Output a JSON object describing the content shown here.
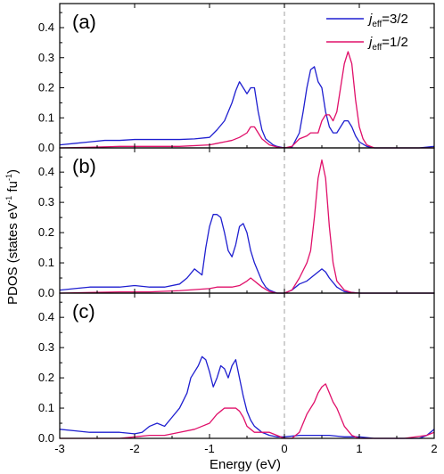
{
  "chart_data": {
    "type": "line",
    "xlabel": "Energy (eV)",
    "ylabel": "PDOS (states eV-1 fu-1)",
    "ylabel_parts": {
      "main": "PDOS (states eV",
      "sup1": "-1",
      "mid": " fu",
      "sup2": "-1",
      "end": ")"
    },
    "xlim": [
      -3,
      2
    ],
    "ylim": [
      0,
      0.48
    ],
    "x_ticks": [
      -3,
      -2,
      -1,
      0,
      1,
      2
    ],
    "y_ticks": [
      0.0,
      0.1,
      0.2,
      0.3,
      0.4
    ],
    "y_tick_labels": [
      "0.0",
      "0.1",
      "0.2",
      "0.3",
      "0.4"
    ],
    "fermi_level": 0,
    "legend": {
      "placement": "top-right",
      "entries": [
        {
          "prefix": "j",
          "sub": "eff",
          "suffix": "=3/2",
          "color": "#1f1fd0"
        },
        {
          "prefix": "j",
          "sub": "eff",
          "suffix": "=1/2",
          "color": "#e0106a"
        }
      ]
    },
    "panels": [
      {
        "label": "(a)",
        "series": [
          {
            "name": "jeff=3/2",
            "color": "#1f1fd0",
            "x": [
              -3.0,
              -2.8,
              -2.6,
              -2.4,
              -2.2,
              -2.0,
              -1.8,
              -1.6,
              -1.4,
              -1.2,
              -1.0,
              -0.9,
              -0.8,
              -0.75,
              -0.7,
              -0.65,
              -0.6,
              -0.55,
              -0.5,
              -0.45,
              -0.4,
              -0.35,
              -0.3,
              -0.25,
              -0.2,
              -0.15,
              -0.1,
              0.0,
              0.1,
              0.2,
              0.25,
              0.3,
              0.35,
              0.4,
              0.45,
              0.5,
              0.55,
              0.6,
              0.65,
              0.7,
              0.75,
              0.8,
              0.85,
              0.9,
              0.95,
              1.0,
              1.1,
              1.2,
              1.4,
              1.6,
              1.8,
              2.0
            ],
            "y": [
              0.01,
              0.015,
              0.02,
              0.025,
              0.025,
              0.028,
              0.028,
              0.028,
              0.028,
              0.03,
              0.035,
              0.06,
              0.09,
              0.12,
              0.15,
              0.19,
              0.22,
              0.2,
              0.18,
              0.2,
              0.2,
              0.12,
              0.06,
              0.03,
              0.02,
              0.01,
              0.005,
              0.0,
              0.002,
              0.05,
              0.12,
              0.2,
              0.26,
              0.27,
              0.22,
              0.2,
              0.12,
              0.07,
              0.05,
              0.05,
              0.07,
              0.09,
              0.09,
              0.07,
              0.04,
              0.02,
              0.005,
              0.0,
              0.0,
              0.0,
              0.0,
              0.005
            ]
          },
          {
            "name": "jeff=1/2",
            "color": "#e0106a",
            "x": [
              -3.0,
              -2.6,
              -2.2,
              -1.8,
              -1.4,
              -1.0,
              -0.9,
              -0.8,
              -0.7,
              -0.6,
              -0.5,
              -0.45,
              -0.4,
              -0.35,
              -0.3,
              -0.2,
              -0.1,
              0.0,
              0.1,
              0.2,
              0.3,
              0.35,
              0.4,
              0.45,
              0.5,
              0.55,
              0.6,
              0.65,
              0.7,
              0.75,
              0.8,
              0.85,
              0.9,
              0.95,
              1.0,
              1.05,
              1.1,
              1.2,
              1.4,
              1.6,
              2.0
            ],
            "y": [
              0.0,
              0.002,
              0.005,
              0.005,
              0.005,
              0.01,
              0.015,
              0.02,
              0.025,
              0.035,
              0.05,
              0.07,
              0.07,
              0.05,
              0.03,
              0.01,
              0.003,
              0.0,
              0.005,
              0.03,
              0.04,
              0.05,
              0.05,
              0.05,
              0.09,
              0.11,
              0.11,
              0.09,
              0.12,
              0.2,
              0.28,
              0.32,
              0.28,
              0.16,
              0.07,
              0.03,
              0.01,
              0.0,
              0.0,
              0.0,
              0.0
            ]
          }
        ]
      },
      {
        "label": "(b)",
        "series": [
          {
            "name": "jeff=3/2",
            "color": "#1f1fd0",
            "x": [
              -3.0,
              -2.8,
              -2.6,
              -2.4,
              -2.2,
              -2.0,
              -1.8,
              -1.6,
              -1.4,
              -1.3,
              -1.2,
              -1.15,
              -1.1,
              -1.05,
              -1.0,
              -0.95,
              -0.9,
              -0.85,
              -0.8,
              -0.75,
              -0.7,
              -0.65,
              -0.6,
              -0.55,
              -0.5,
              -0.45,
              -0.4,
              -0.35,
              -0.3,
              -0.25,
              -0.2,
              -0.1,
              0.0,
              0.1,
              0.2,
              0.3,
              0.4,
              0.45,
              0.5,
              0.55,
              0.6,
              0.7,
              0.8,
              1.0,
              1.2,
              1.6,
              2.0
            ],
            "y": [
              0.01,
              0.015,
              0.02,
              0.02,
              0.02,
              0.025,
              0.02,
              0.02,
              0.03,
              0.05,
              0.08,
              0.07,
              0.06,
              0.15,
              0.22,
              0.26,
              0.26,
              0.25,
              0.2,
              0.14,
              0.12,
              0.16,
              0.22,
              0.23,
              0.2,
              0.14,
              0.1,
              0.07,
              0.04,
              0.02,
              0.01,
              0.0,
              0.0,
              0.01,
              0.03,
              0.04,
              0.06,
              0.07,
              0.08,
              0.07,
              0.05,
              0.02,
              0.005,
              0.0,
              0.0,
              0.0,
              0.0
            ]
          },
          {
            "name": "jeff=1/2",
            "color": "#e0106a",
            "x": [
              -3.0,
              -2.6,
              -2.2,
              -1.8,
              -1.4,
              -1.0,
              -0.9,
              -0.8,
              -0.7,
              -0.6,
              -0.5,
              -0.45,
              -0.4,
              -0.35,
              -0.3,
              -0.2,
              -0.1,
              0.0,
              0.1,
              0.2,
              0.3,
              0.35,
              0.4,
              0.45,
              0.5,
              0.55,
              0.6,
              0.65,
              0.7,
              0.8,
              0.9,
              1.0,
              1.2,
              1.6,
              2.0
            ],
            "y": [
              0.0,
              0.002,
              0.004,
              0.004,
              0.008,
              0.015,
              0.02,
              0.02,
              0.02,
              0.025,
              0.04,
              0.05,
              0.04,
              0.03,
              0.02,
              0.005,
              0.0,
              0.0,
              0.01,
              0.05,
              0.1,
              0.14,
              0.25,
              0.38,
              0.44,
              0.38,
              0.22,
              0.1,
              0.04,
              0.01,
              0.002,
              0.0,
              0.0,
              0.0,
              0.0
            ]
          }
        ]
      },
      {
        "label": "(c)",
        "series": [
          {
            "name": "jeff=3/2",
            "color": "#1f1fd0",
            "x": [
              -3.0,
              -2.8,
              -2.6,
              -2.4,
              -2.2,
              -2.0,
              -1.9,
              -1.8,
              -1.7,
              -1.6,
              -1.5,
              -1.4,
              -1.3,
              -1.25,
              -1.2,
              -1.15,
              -1.1,
              -1.05,
              -1.0,
              -0.95,
              -0.9,
              -0.85,
              -0.8,
              -0.75,
              -0.7,
              -0.65,
              -0.6,
              -0.55,
              -0.5,
              -0.45,
              -0.4,
              -0.35,
              -0.3,
              -0.25,
              -0.2,
              -0.1,
              0.0,
              0.2,
              0.4,
              0.6,
              0.8,
              1.0,
              1.2,
              1.4,
              1.6,
              1.8,
              1.9,
              1.95,
              2.0
            ],
            "y": [
              0.03,
              0.025,
              0.02,
              0.02,
              0.02,
              0.015,
              0.02,
              0.04,
              0.05,
              0.04,
              0.07,
              0.1,
              0.15,
              0.2,
              0.22,
              0.24,
              0.27,
              0.26,
              0.22,
              0.17,
              0.2,
              0.24,
              0.23,
              0.2,
              0.24,
              0.26,
              0.2,
              0.14,
              0.09,
              0.06,
              0.04,
              0.03,
              0.02,
              0.015,
              0.01,
              0.005,
              0.005,
              0.01,
              0.01,
              0.01,
              0.005,
              0.005,
              0.0,
              0.0,
              0.0,
              0.0,
              0.01,
              0.02,
              0.03
            ]
          },
          {
            "name": "jeff=1/2",
            "color": "#e0106a",
            "x": [
              -3.0,
              -2.6,
              -2.2,
              -2.0,
              -1.8,
              -1.6,
              -1.4,
              -1.2,
              -1.1,
              -1.0,
              -0.9,
              -0.85,
              -0.8,
              -0.75,
              -0.7,
              -0.65,
              -0.6,
              -0.55,
              -0.5,
              -0.45,
              -0.4,
              -0.3,
              -0.2,
              -0.1,
              0.0,
              0.1,
              0.2,
              0.3,
              0.4,
              0.45,
              0.5,
              0.55,
              0.6,
              0.65,
              0.7,
              0.8,
              0.9,
              1.0,
              1.2,
              1.6,
              1.9,
              2.0
            ],
            "y": [
              0.0,
              0.0,
              0.0,
              0.005,
              0.01,
              0.01,
              0.02,
              0.03,
              0.04,
              0.05,
              0.08,
              0.09,
              0.1,
              0.1,
              0.1,
              0.1,
              0.09,
              0.07,
              0.04,
              0.03,
              0.02,
              0.02,
              0.02,
              0.01,
              0.0,
              0.0,
              0.02,
              0.08,
              0.12,
              0.15,
              0.17,
              0.18,
              0.15,
              0.12,
              0.1,
              0.04,
              0.01,
              0.0,
              0.0,
              0.0,
              0.01,
              0.02
            ]
          }
        ]
      }
    ]
  }
}
